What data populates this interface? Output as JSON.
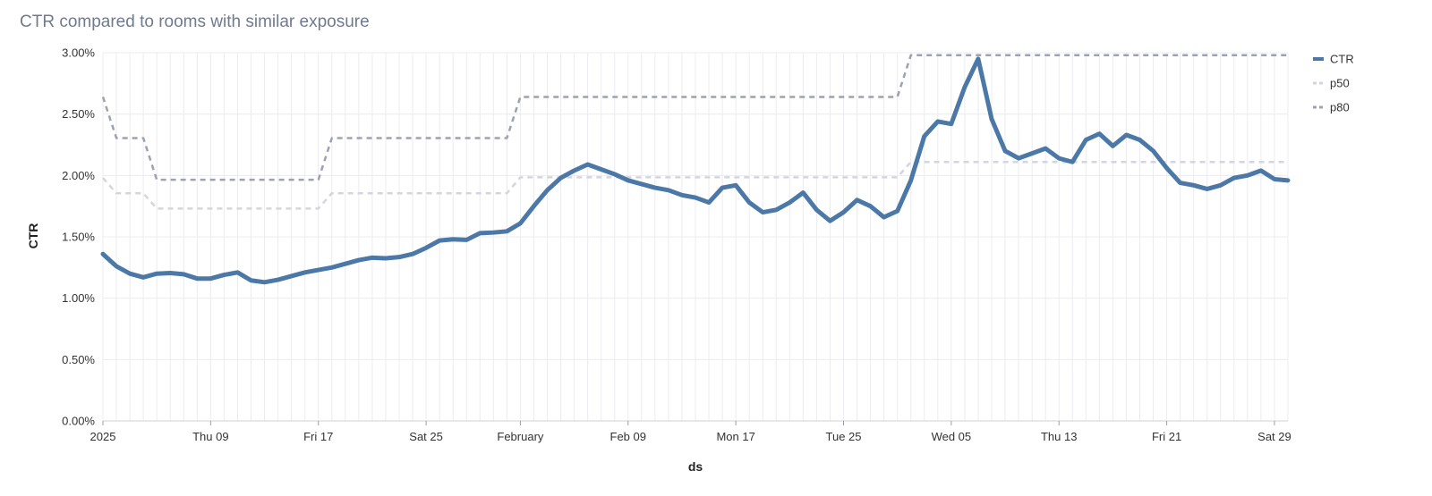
{
  "chart_data": {
    "type": "line",
    "title": "CTR compared to rooms with similar exposure",
    "xlabel": "ds",
    "ylabel": "CTR",
    "ylim": [
      0,
      0.03
    ],
    "y_ticks": [
      "0.00%",
      "0.50%",
      "1.00%",
      "1.50%",
      "2.00%",
      "2.50%",
      "3.00%"
    ],
    "x_start": "2025-01-01",
    "x_end": "2025-03-30",
    "x_ticks": [
      {
        "date": "2025-01-01",
        "label": "2025"
      },
      {
        "date": "2025-01-09",
        "label": "Thu 09"
      },
      {
        "date": "2025-01-17",
        "label": "Fri 17"
      },
      {
        "date": "2025-01-25",
        "label": "Sat 25"
      },
      {
        "date": "2025-02-01",
        "label": "February"
      },
      {
        "date": "2025-02-09",
        "label": "Feb 09"
      },
      {
        "date": "2025-02-17",
        "label": "Mon 17"
      },
      {
        "date": "2025-02-25",
        "label": "Tue 25"
      },
      {
        "date": "2025-03-05",
        "label": "Wed 05"
      },
      {
        "date": "2025-03-13",
        "label": "Thu 13"
      },
      {
        "date": "2025-03-21",
        "label": "Fri 21"
      },
      {
        "date": "2025-03-29",
        "label": "Sat 29"
      }
    ],
    "legend_position": "top-right",
    "series": [
      {
        "name": "CTR",
        "color": "#4c78a8",
        "style": "solid",
        "points": [
          [
            "2025-01-01",
            0.0136
          ],
          [
            "2025-01-02",
            0.0126
          ],
          [
            "2025-01-03",
            0.012
          ],
          [
            "2025-01-04",
            0.0117
          ],
          [
            "2025-01-05",
            0.012
          ],
          [
            "2025-01-06",
            0.01205
          ],
          [
            "2025-01-07",
            0.01195
          ],
          [
            "2025-01-08",
            0.0116
          ],
          [
            "2025-01-09",
            0.0116
          ],
          [
            "2025-01-10",
            0.0119
          ],
          [
            "2025-01-11",
            0.0121
          ],
          [
            "2025-01-12",
            0.01145
          ],
          [
            "2025-01-13",
            0.0113
          ],
          [
            "2025-01-14",
            0.0115
          ],
          [
            "2025-01-15",
            0.0118
          ],
          [
            "2025-01-16",
            0.0121
          ],
          [
            "2025-01-17",
            0.0123
          ],
          [
            "2025-01-18",
            0.0125
          ],
          [
            "2025-01-19",
            0.0128
          ],
          [
            "2025-01-20",
            0.0131
          ],
          [
            "2025-01-21",
            0.0133
          ],
          [
            "2025-01-22",
            0.01325
          ],
          [
            "2025-01-23",
            0.01335
          ],
          [
            "2025-01-24",
            0.0136
          ],
          [
            "2025-01-25",
            0.0141
          ],
          [
            "2025-01-26",
            0.0147
          ],
          [
            "2025-01-27",
            0.0148
          ],
          [
            "2025-01-28",
            0.01475
          ],
          [
            "2025-01-29",
            0.0153
          ],
          [
            "2025-01-30",
            0.01535
          ],
          [
            "2025-01-31",
            0.01545
          ],
          [
            "2025-02-01",
            0.0161
          ],
          [
            "2025-02-02",
            0.0175
          ],
          [
            "2025-02-03",
            0.0188
          ],
          [
            "2025-02-04",
            0.0198
          ],
          [
            "2025-02-05",
            0.0204
          ],
          [
            "2025-02-06",
            0.0209
          ],
          [
            "2025-02-07",
            0.0205
          ],
          [
            "2025-02-08",
            0.0201
          ],
          [
            "2025-02-09",
            0.0196
          ],
          [
            "2025-02-10",
            0.0193
          ],
          [
            "2025-02-11",
            0.019
          ],
          [
            "2025-02-12",
            0.0188
          ],
          [
            "2025-02-13",
            0.0184
          ],
          [
            "2025-02-14",
            0.0182
          ],
          [
            "2025-02-15",
            0.0178
          ],
          [
            "2025-02-16",
            0.019
          ],
          [
            "2025-02-17",
            0.0192
          ],
          [
            "2025-02-18",
            0.0178
          ],
          [
            "2025-02-19",
            0.017
          ],
          [
            "2025-02-20",
            0.0172
          ],
          [
            "2025-02-21",
            0.0178
          ],
          [
            "2025-02-22",
            0.0186
          ],
          [
            "2025-02-23",
            0.0172
          ],
          [
            "2025-02-24",
            0.0163
          ],
          [
            "2025-02-25",
            0.017
          ],
          [
            "2025-02-26",
            0.018
          ],
          [
            "2025-02-27",
            0.0175
          ],
          [
            "2025-02-28",
            0.0166
          ],
          [
            "2025-03-01",
            0.0171
          ],
          [
            "2025-03-02",
            0.0196
          ],
          [
            "2025-03-03",
            0.0232
          ],
          [
            "2025-03-04",
            0.0244
          ],
          [
            "2025-03-05",
            0.0242
          ],
          [
            "2025-03-06",
            0.0272
          ],
          [
            "2025-03-07",
            0.0295
          ],
          [
            "2025-03-08",
            0.0246
          ],
          [
            "2025-03-09",
            0.022
          ],
          [
            "2025-03-10",
            0.0214
          ],
          [
            "2025-03-11",
            0.0218
          ],
          [
            "2025-03-12",
            0.0222
          ],
          [
            "2025-03-13",
            0.0214
          ],
          [
            "2025-03-14",
            0.0211
          ],
          [
            "2025-03-15",
            0.0229
          ],
          [
            "2025-03-16",
            0.0234
          ],
          [
            "2025-03-17",
            0.0224
          ],
          [
            "2025-03-18",
            0.0233
          ],
          [
            "2025-03-19",
            0.0229
          ],
          [
            "2025-03-20",
            0.022
          ],
          [
            "2025-03-21",
            0.0206
          ],
          [
            "2025-03-22",
            0.0194
          ],
          [
            "2025-03-23",
            0.0192
          ],
          [
            "2025-03-24",
            0.0189
          ],
          [
            "2025-03-25",
            0.0192
          ],
          [
            "2025-03-26",
            0.0198
          ],
          [
            "2025-03-27",
            0.02
          ],
          [
            "2025-03-28",
            0.0204
          ],
          [
            "2025-03-29",
            0.0197
          ],
          [
            "2025-03-30",
            0.0196
          ]
        ]
      },
      {
        "name": "p50",
        "color": "#d3d6de",
        "style": "dashed",
        "points": [
          [
            "2025-01-01",
            0.0198
          ],
          [
            "2025-01-02",
            0.01855
          ],
          [
            "2025-01-04",
            0.01855
          ],
          [
            "2025-01-05",
            0.0173
          ],
          [
            "2025-01-17",
            0.0173
          ],
          [
            "2025-01-18",
            0.01855
          ],
          [
            "2025-01-31",
            0.01855
          ],
          [
            "2025-02-01",
            0.01985
          ],
          [
            "2025-03-01",
            0.01985
          ],
          [
            "2025-03-02",
            0.0211
          ],
          [
            "2025-03-30",
            0.0211
          ]
        ]
      },
      {
        "name": "p80",
        "color": "#9ea2b0",
        "style": "dashed",
        "points": [
          [
            "2025-01-01",
            0.0264
          ],
          [
            "2025-01-02",
            0.02305
          ],
          [
            "2025-01-04",
            0.02305
          ],
          [
            "2025-01-05",
            0.01965
          ],
          [
            "2025-01-17",
            0.01965
          ],
          [
            "2025-01-18",
            0.02305
          ],
          [
            "2025-01-31",
            0.02305
          ],
          [
            "2025-02-01",
            0.0264
          ],
          [
            "2025-03-01",
            0.0264
          ],
          [
            "2025-03-02",
            0.0298
          ],
          [
            "2025-03-30",
            0.0298
          ]
        ]
      }
    ]
  }
}
